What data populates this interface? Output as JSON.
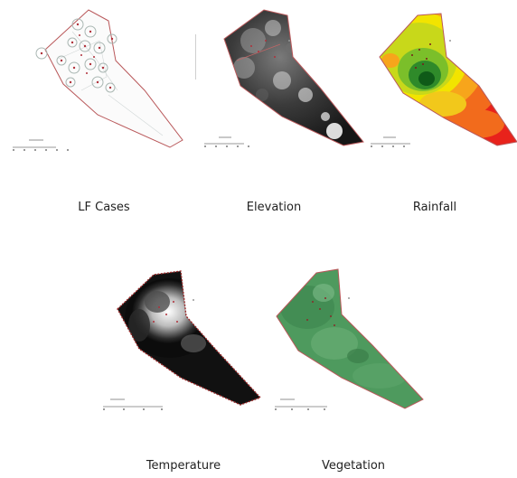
{
  "maps": [
    {
      "id": "lf-cases",
      "label": "LF Cases"
    },
    {
      "id": "elevation",
      "label": "Elevation"
    },
    {
      "id": "rainfall",
      "label": "Rainfall"
    },
    {
      "id": "temperature",
      "label": "Temperature"
    },
    {
      "id": "vegetation",
      "label": "Vegetation"
    }
  ],
  "colors": {
    "boundary": "#b9585a",
    "case_marker": "#b0303a",
    "elevation_dark": "#2a2a2a",
    "rainfall_low": "#e8221b",
    "rainfall_mid": "#f2e400",
    "rainfall_high": "#0f5a18",
    "temperature_dark": "#111111",
    "vegetation": "#4e9a5e"
  }
}
